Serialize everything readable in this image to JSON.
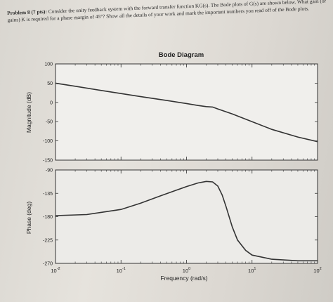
{
  "problem": {
    "label": "Problem 8 (7 pts):",
    "text": "Consider the unity feedback system with the forward transfer function KG(s). The Bode plots of G(s) are shown below. What gain (or gains) K is required for a phase margin of 45°? Show all the details of your work and mark the important numbers you read off of the Bode plots."
  },
  "chart_data": [
    {
      "type": "line",
      "title": "Bode Diagram",
      "xlabel": "",
      "ylabel": "Magnitude (dB)",
      "xscale": "log",
      "xlim": [
        0.01,
        100
      ],
      "ylim": [
        -150,
        100
      ],
      "yticks": [
        "100",
        "50",
        "0",
        "-50",
        "-100",
        "-150"
      ],
      "grid": false,
      "series": [
        {
          "x": [
            0.01,
            0.02,
            0.05,
            0.1,
            0.2,
            0.5,
            1,
            1.5,
            2,
            2.5,
            3,
            5,
            10,
            20,
            50,
            100
          ],
          "values": [
            50,
            42,
            31,
            23,
            15,
            5,
            -3,
            -8,
            -11,
            -12,
            -17,
            -30,
            -50,
            -70,
            -90,
            -102
          ]
        }
      ]
    },
    {
      "type": "line",
      "title": "",
      "xlabel": "Frequency (rad/s)",
      "ylabel": "Phase (deg)",
      "xscale": "log",
      "xlim": [
        0.01,
        100
      ],
      "ylim": [
        -270,
        -90
      ],
      "yticks": [
        "-90",
        "-135",
        "-180",
        "-225",
        "-270"
      ],
      "xticks": [
        "10-2",
        "10-1",
        "100",
        "101",
        "102"
      ],
      "grid": false,
      "series": [
        {
          "x": [
            0.01,
            0.03,
            0.1,
            0.2,
            0.4,
            0.7,
            1,
            1.5,
            2,
            2.5,
            3,
            3.5,
            4,
            5,
            6,
            8,
            10,
            20,
            50,
            100
          ],
          "values": [
            -178,
            -176,
            -166,
            -154,
            -140,
            -129,
            -122,
            -115,
            -112,
            -113,
            -121,
            -138,
            -160,
            -200,
            -225,
            -245,
            -254,
            -262,
            -265,
            -265
          ]
        }
      ]
    }
  ]
}
